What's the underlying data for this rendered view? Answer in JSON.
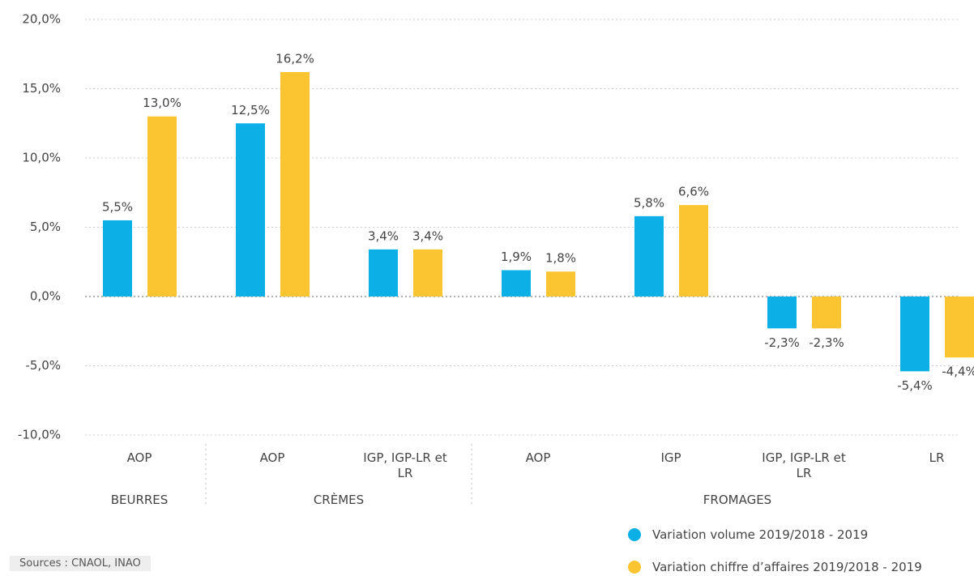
{
  "chart_data": {
    "type": "bar",
    "categories": [
      "AOP",
      "AOP",
      "IGP, IGP-LR et LR",
      "AOP",
      "IGP",
      "IGP, IGP-LR et LR",
      "LR"
    ],
    "groups": [
      {
        "label": "BEURRES",
        "size": 1
      },
      {
        "label": "CRÈMES",
        "size": 2
      },
      {
        "label": "FROMAGES",
        "size": 4
      }
    ],
    "series": [
      {
        "name": "Variation volume 2019/2018 - 2019",
        "color": "#0db0e6",
        "values": [
          5.5,
          12.5,
          3.4,
          1.9,
          5.8,
          -2.3,
          -5.4
        ],
        "value_labels": [
          "5,5%",
          "12,5%",
          "3,4%",
          "1,9%",
          "5,8%",
          "-2,3%",
          "-5,4%"
        ]
      },
      {
        "name": "Variation chiffre d’affaires 2019/2018 - 2019",
        "color": "#fbc531",
        "values": [
          13.0,
          16.2,
          3.4,
          1.8,
          6.6,
          -2.3,
          -4.4
        ],
        "value_labels": [
          "13,0%",
          "16,2%",
          "3,4%",
          "1,8%",
          "6,6%",
          "-2,3%",
          "-4,4%"
        ]
      }
    ],
    "ylim": [
      -10,
      20
    ],
    "yticks": [
      {
        "value": -10,
        "label": "-10,0%"
      },
      {
        "value": -5,
        "label": "-5,0%"
      },
      {
        "value": 0,
        "label": "0,0%"
      },
      {
        "value": 5,
        "label": "5,0%"
      },
      {
        "value": 10,
        "label": "10,0%"
      },
      {
        "value": 15,
        "label": "15,0%"
      },
      {
        "value": 20,
        "label": "20,0%"
      }
    ],
    "grid": true,
    "source": "Sources : CNAOL, INAO"
  }
}
